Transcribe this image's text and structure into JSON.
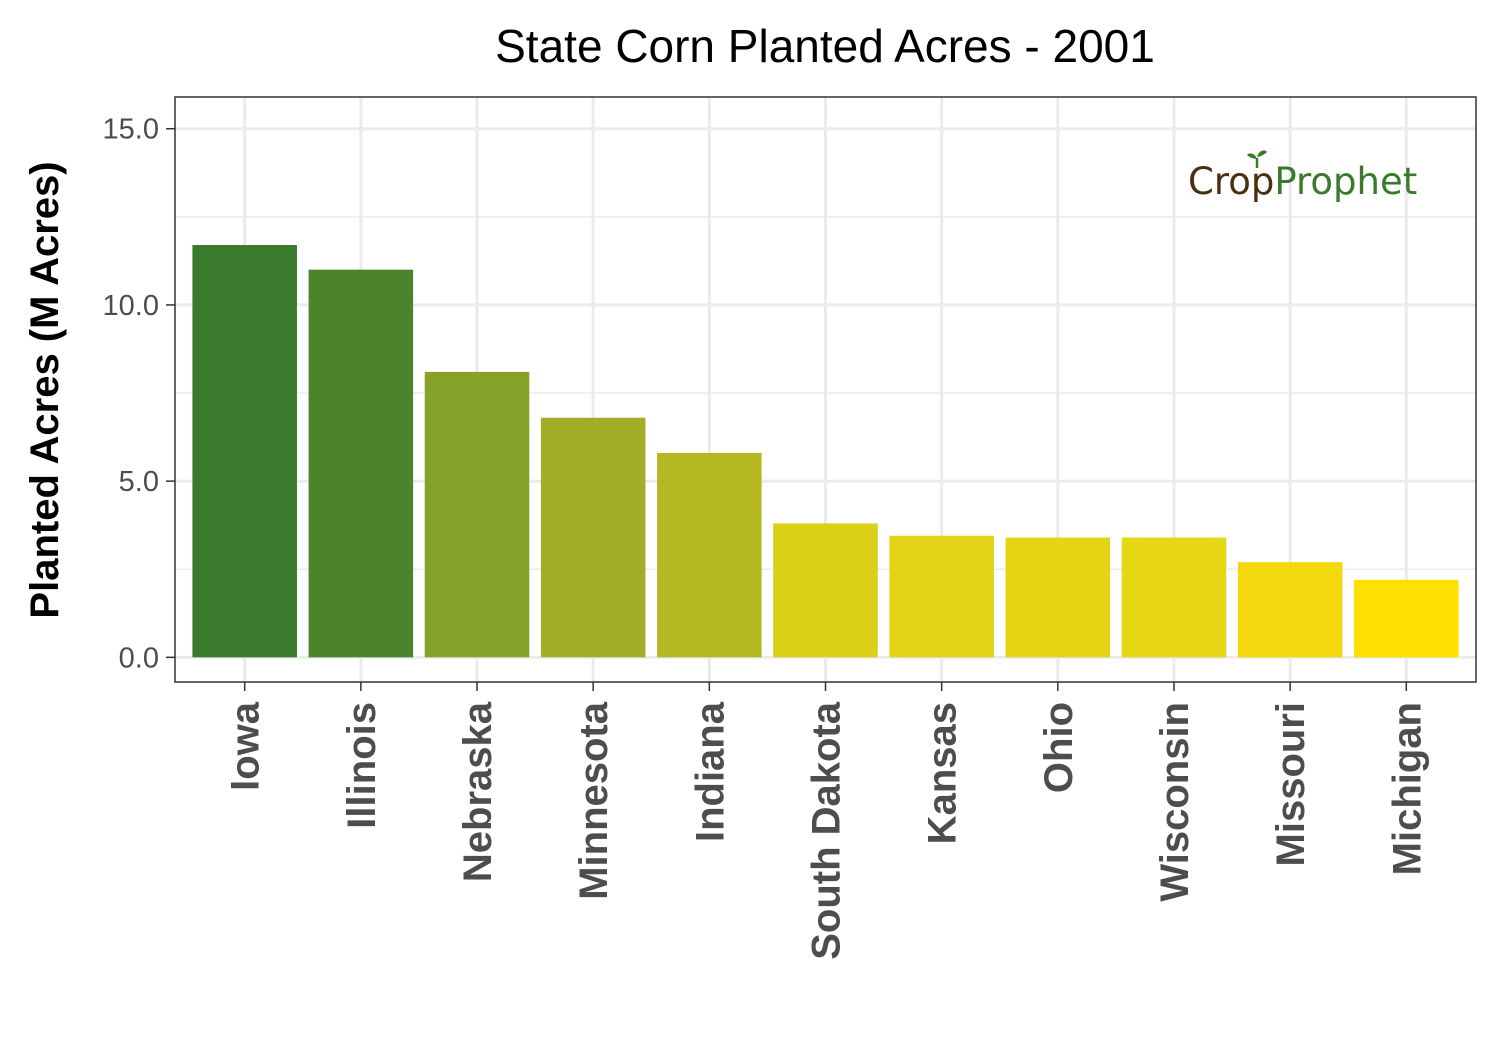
{
  "chart_data": {
    "type": "bar",
    "title": "State Corn Planted Acres - 2001",
    "xlabel": "",
    "ylabel": "Planted Acres (M Acres)",
    "categories": [
      "Iowa",
      "Illinois",
      "Nebraska",
      "Minnesota",
      "Indiana",
      "South Dakota",
      "Kansas",
      "Ohio",
      "Wisconsin",
      "Missouri",
      "Michigan"
    ],
    "values": [
      11.7,
      11.0,
      8.1,
      6.8,
      5.8,
      3.8,
      3.45,
      3.4,
      3.4,
      2.7,
      2.2
    ],
    "colors": [
      "#3a7a2c",
      "#4b842a",
      "#86a22a",
      "#a3ae26",
      "#b5b822",
      "#dccf18",
      "#e2d316",
      "#e4d414",
      "#e6d613",
      "#f2d80c",
      "#ffe000"
    ],
    "ylim": [
      -0.7,
      15.9
    ],
    "yticks": [
      0.0,
      5.0,
      10.0,
      15.0
    ],
    "ytick_labels": [
      "0.0",
      "5.0",
      "10.0",
      "15.0"
    ],
    "grid": true,
    "legend": "none"
  },
  "watermark": {
    "part1": "Crop",
    "part2": "Prophet",
    "colors": [
      "#4a2e0e",
      "#3a7a2c"
    ]
  }
}
